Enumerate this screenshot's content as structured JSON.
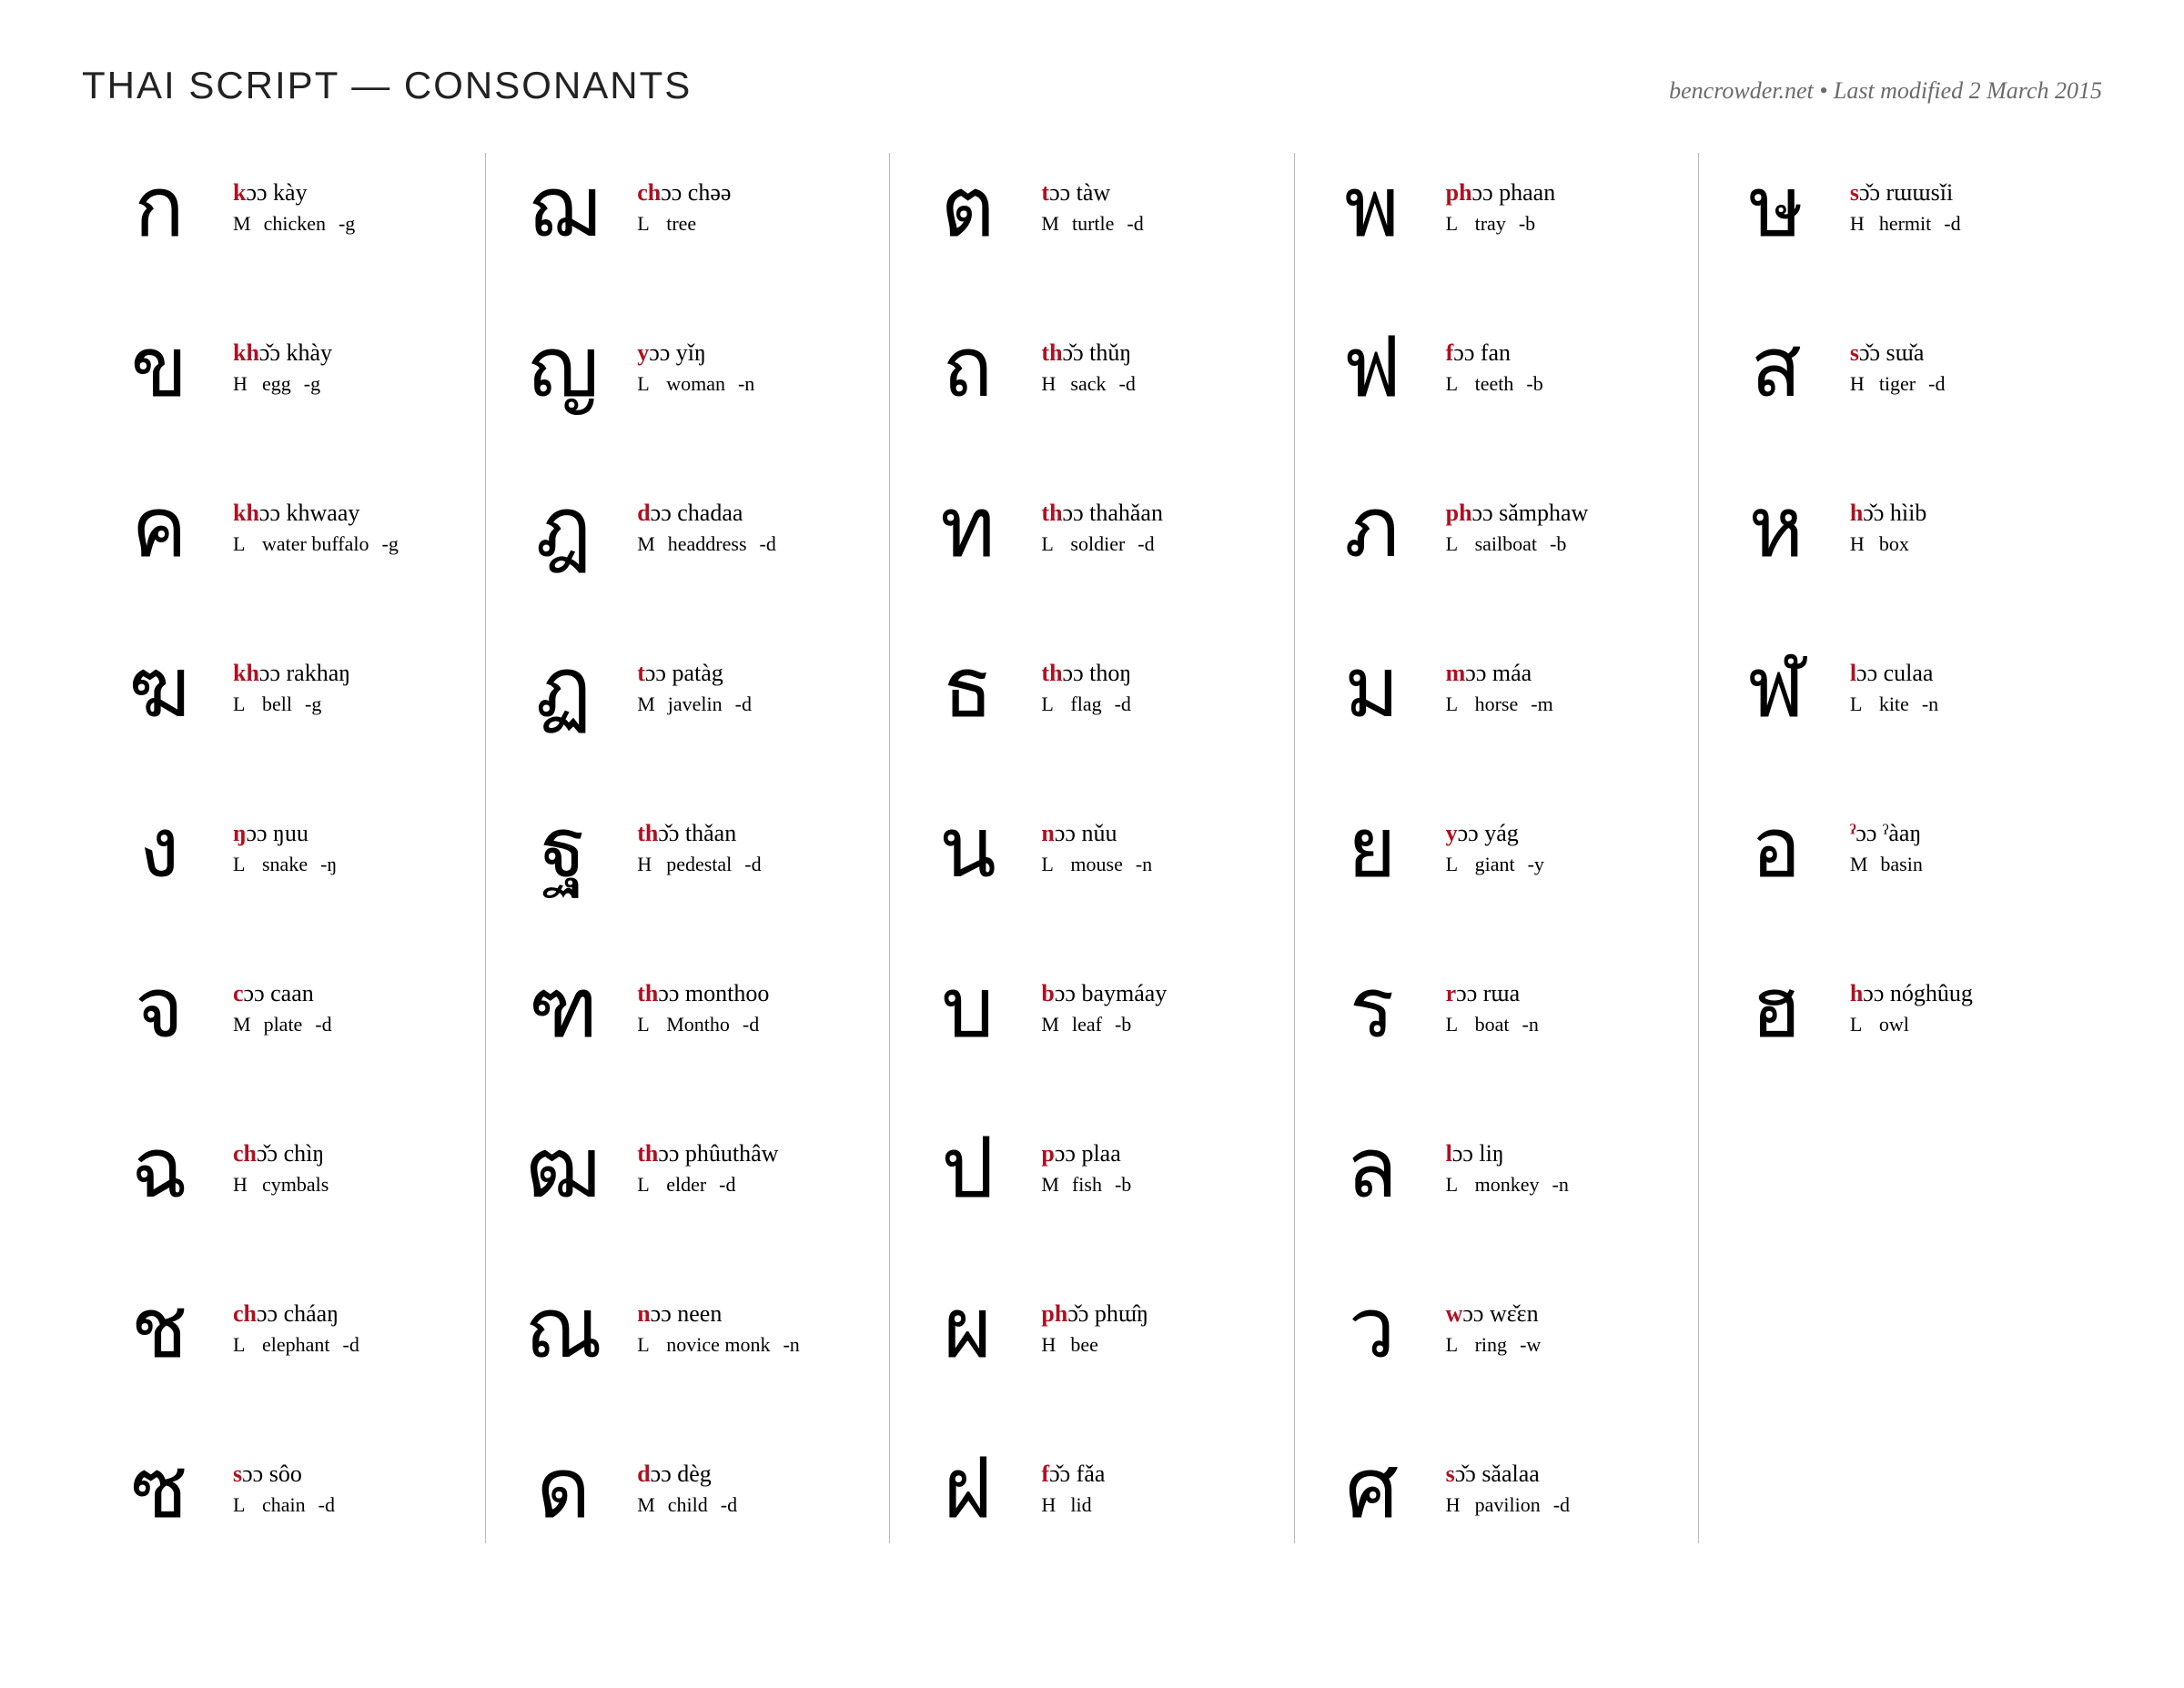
{
  "header": {
    "title": "THAI SCRIPT — CONSONANTS",
    "meta": "bencrowder.net • Last modified 2 March 2015"
  },
  "colors": {
    "initial": "#b01020",
    "text": "#000000",
    "meta": "#6b6b6b",
    "divider": "#bbbbbb",
    "background": "#ffffff"
  },
  "columns": [
    [
      {
        "glyph": "ก",
        "initial": "k",
        "rest": "ɔɔ kày",
        "cls": "M",
        "meaning": "chicken",
        "final": "-g"
      },
      {
        "glyph": "ข",
        "initial": "kh",
        "rest": "ɔ̌ɔ khày",
        "cls": "H",
        "meaning": "egg",
        "final": "-g"
      },
      {
        "glyph": "ค",
        "initial": "kh",
        "rest": "ɔɔ khwaay",
        "cls": "L",
        "meaning": "water buffalo",
        "final": "-g"
      },
      {
        "glyph": "ฆ",
        "initial": "kh",
        "rest": "ɔɔ rakhaŋ",
        "cls": "L",
        "meaning": "bell",
        "final": "-g"
      },
      {
        "glyph": "ง",
        "initial": "ŋ",
        "rest": "ɔɔ ŋuu",
        "cls": "L",
        "meaning": "snake",
        "final": "-ŋ"
      },
      {
        "glyph": "จ",
        "initial": "c",
        "rest": "ɔɔ caan",
        "cls": "M",
        "meaning": "plate",
        "final": "-d"
      },
      {
        "glyph": "ฉ",
        "initial": "ch",
        "rest": "ɔ̌ɔ chìŋ",
        "cls": "H",
        "meaning": "cymbals",
        "final": ""
      },
      {
        "glyph": "ช",
        "initial": "ch",
        "rest": "ɔɔ cháaŋ",
        "cls": "L",
        "meaning": "elephant",
        "final": "-d"
      },
      {
        "glyph": "ซ",
        "initial": "s",
        "rest": "ɔɔ sôo",
        "cls": "L",
        "meaning": "chain",
        "final": "-d"
      }
    ],
    [
      {
        "glyph": "ฌ",
        "initial": "ch",
        "rest": "ɔɔ chəə",
        "cls": "L",
        "meaning": "tree",
        "final": ""
      },
      {
        "glyph": "ญ",
        "initial": "y",
        "rest": "ɔɔ yǐŋ",
        "cls": "L",
        "meaning": "woman",
        "final": "-n"
      },
      {
        "glyph": "ฎ",
        "initial": "d",
        "rest": "ɔɔ chadaa",
        "cls": "M",
        "meaning": "headdress",
        "final": "-d"
      },
      {
        "glyph": "ฏ",
        "initial": "t",
        "rest": "ɔɔ patàg",
        "cls": "M",
        "meaning": "javelin",
        "final": "-d"
      },
      {
        "glyph": "ฐ",
        "initial": "th",
        "rest": "ɔ̌ɔ thǎan",
        "cls": "H",
        "meaning": "pedestal",
        "final": "-d"
      },
      {
        "glyph": "ฑ",
        "initial": "th",
        "rest": "ɔɔ monthoo",
        "cls": "L",
        "meaning": "Montho",
        "final": "-d"
      },
      {
        "glyph": "ฒ",
        "initial": "th",
        "rest": "ɔɔ phûuthâw",
        "cls": "L",
        "meaning": "elder",
        "final": "-d"
      },
      {
        "glyph": "ณ",
        "initial": "n",
        "rest": "ɔɔ neen",
        "cls": "L",
        "meaning": "novice monk",
        "final": "-n"
      },
      {
        "glyph": "ด",
        "initial": "d",
        "rest": "ɔɔ dèg",
        "cls": "M",
        "meaning": "child",
        "final": "-d"
      }
    ],
    [
      {
        "glyph": "ต",
        "initial": "t",
        "rest": "ɔɔ tàw",
        "cls": "M",
        "meaning": "turtle",
        "final": "-d"
      },
      {
        "glyph": "ถ",
        "initial": "th",
        "rest": "ɔ̌ɔ thǔŋ",
        "cls": "H",
        "meaning": "sack",
        "final": "-d"
      },
      {
        "glyph": "ท",
        "initial": "th",
        "rest": "ɔɔ thahǎan",
        "cls": "L",
        "meaning": "soldier",
        "final": "-d"
      },
      {
        "glyph": "ธ",
        "initial": "th",
        "rest": "ɔɔ thoŋ",
        "cls": "L",
        "meaning": "flag",
        "final": "-d"
      },
      {
        "glyph": "น",
        "initial": "n",
        "rest": "ɔɔ nǔu",
        "cls": "L",
        "meaning": "mouse",
        "final": "-n"
      },
      {
        "glyph": "บ",
        "initial": "b",
        "rest": "ɔɔ baymáay",
        "cls": "M",
        "meaning": "leaf",
        "final": "-b"
      },
      {
        "glyph": "ป",
        "initial": "p",
        "rest": "ɔɔ plaa",
        "cls": "M",
        "meaning": "fish",
        "final": "-b"
      },
      {
        "glyph": "ผ",
        "initial": "ph",
        "rest": "ɔ̌ɔ phɯ̂ŋ",
        "cls": "H",
        "meaning": "bee",
        "final": ""
      },
      {
        "glyph": "ฝ",
        "initial": "f",
        "rest": "ɔ̌ɔ fǎa",
        "cls": "H",
        "meaning": "lid",
        "final": ""
      }
    ],
    [
      {
        "glyph": "พ",
        "initial": "ph",
        "rest": "ɔɔ phaan",
        "cls": "L",
        "meaning": "tray",
        "final": "-b"
      },
      {
        "glyph": "ฟ",
        "initial": "f",
        "rest": "ɔɔ fan",
        "cls": "L",
        "meaning": "teeth",
        "final": "-b"
      },
      {
        "glyph": "ภ",
        "initial": "ph",
        "rest": "ɔɔ sǎmphaw",
        "cls": "L",
        "meaning": "sailboat",
        "final": "-b"
      },
      {
        "glyph": "ม",
        "initial": "m",
        "rest": "ɔɔ máa",
        "cls": "L",
        "meaning": "horse",
        "final": "-m"
      },
      {
        "glyph": "ย",
        "initial": "y",
        "rest": "ɔɔ yág",
        "cls": "L",
        "meaning": "giant",
        "final": "-y"
      },
      {
        "glyph": "ร",
        "initial": "r",
        "rest": "ɔɔ rɯa",
        "cls": "L",
        "meaning": "boat",
        "final": "-n"
      },
      {
        "glyph": "ล",
        "initial": "l",
        "rest": "ɔɔ liŋ",
        "cls": "L",
        "meaning": "monkey",
        "final": "-n"
      },
      {
        "glyph": "ว",
        "initial": "w",
        "rest": "ɔɔ wɛ̌ɛn",
        "cls": "L",
        "meaning": "ring",
        "final": "-w"
      },
      {
        "glyph": "ศ",
        "initial": "s",
        "rest": "ɔ̌ɔ sǎalaa",
        "cls": "H",
        "meaning": "pavilion",
        "final": "-d"
      }
    ],
    [
      {
        "glyph": "ษ",
        "initial": "s",
        "rest": "ɔ̌ɔ rɯɯsǐi",
        "cls": "H",
        "meaning": "hermit",
        "final": "-d"
      },
      {
        "glyph": "ส",
        "initial": "s",
        "rest": "ɔ̌ɔ sɯ̌a",
        "cls": "H",
        "meaning": "tiger",
        "final": "-d"
      },
      {
        "glyph": "ห",
        "initial": "h",
        "rest": "ɔ̌ɔ hìib",
        "cls": "H",
        "meaning": "box",
        "final": ""
      },
      {
        "glyph": "ฬ",
        "initial": "l",
        "rest": "ɔɔ culaa",
        "cls": "L",
        "meaning": "kite",
        "final": "-n"
      },
      {
        "glyph": "อ",
        "initial": "ˀ",
        "rest": "ɔɔ ˀàaŋ",
        "cls": "M",
        "meaning": "basin",
        "final": ""
      },
      {
        "glyph": "ฮ",
        "initial": "h",
        "rest": "ɔɔ nóghûug",
        "cls": "L",
        "meaning": "owl",
        "final": ""
      }
    ]
  ]
}
